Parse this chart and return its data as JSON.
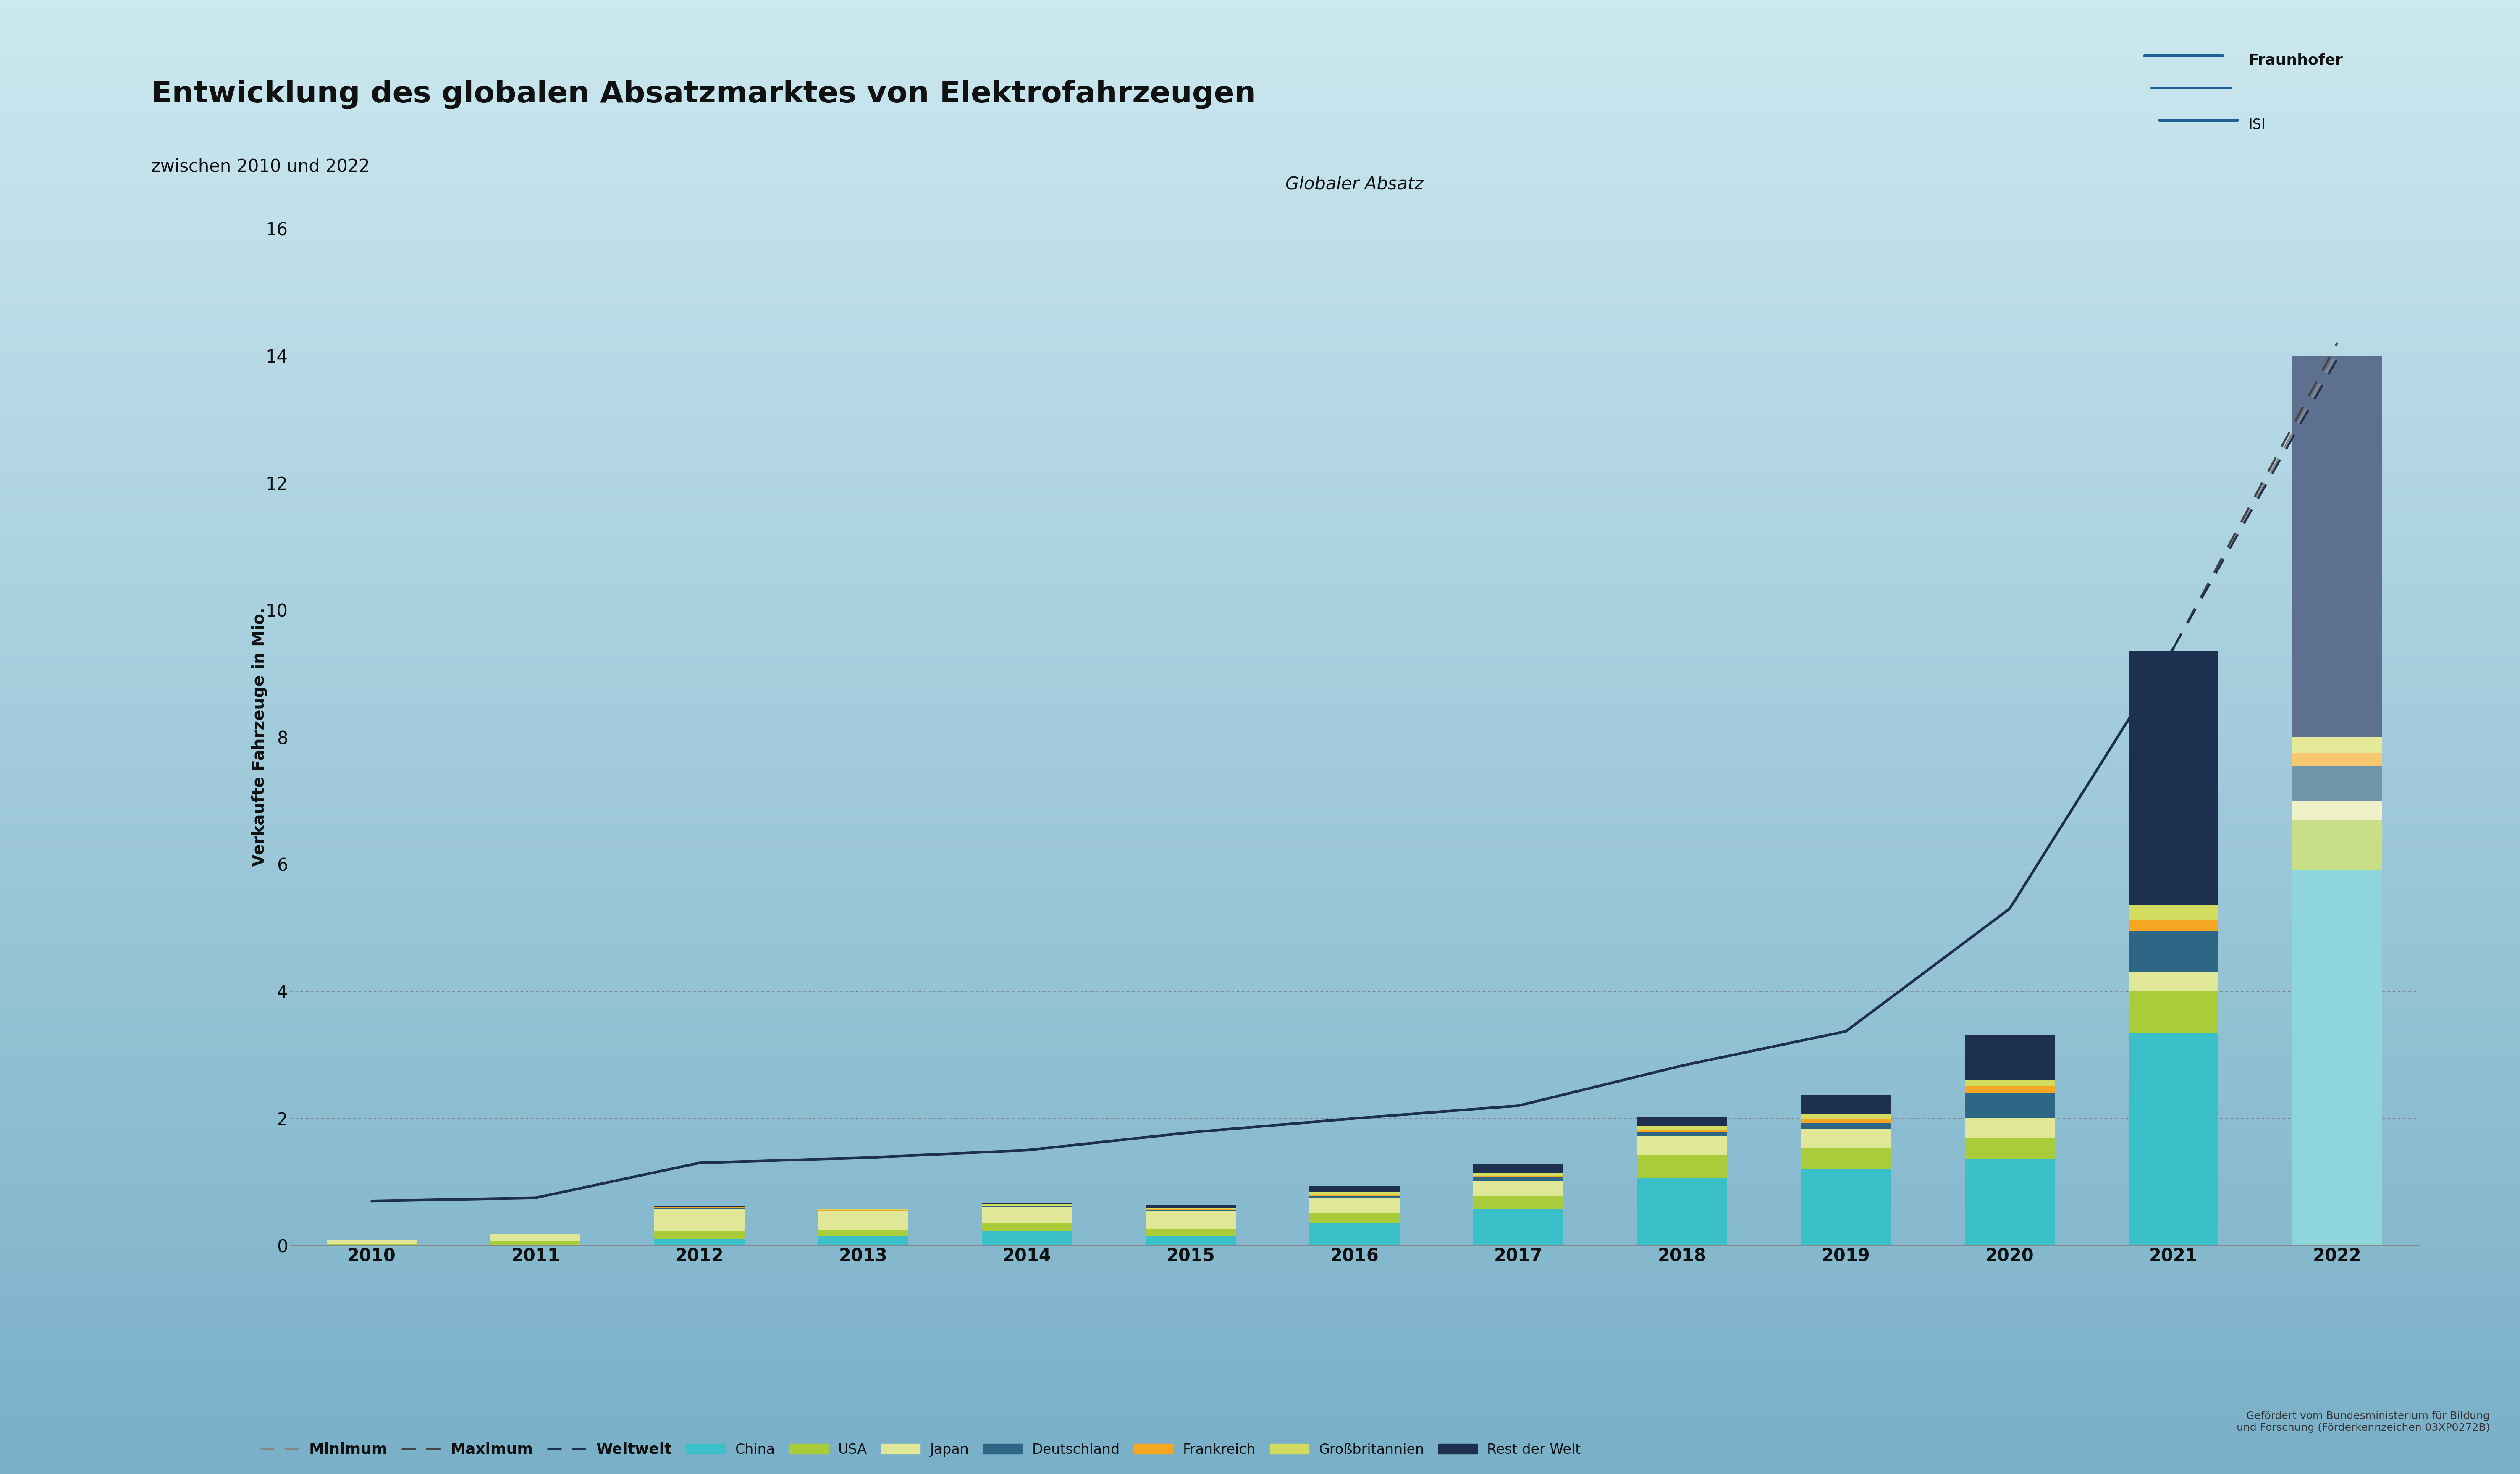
{
  "title": "Entwicklung des globalen Absatzmarktes von Elektrofahrzeugen",
  "subtitle": "zwischen 2010 und 2022",
  "chart_label": "Globaler Absatz",
  "ylabel": "Verkaufte Fahrzeuge in Mio.",
  "years": [
    2010,
    2011,
    2012,
    2013,
    2014,
    2015,
    2016,
    2017,
    2018,
    2019,
    2020,
    2021,
    2022
  ],
  "series_order": [
    "China",
    "USA",
    "Japan",
    "Deutschland",
    "Frankreich",
    "Grossbritannien",
    "RestDerWelt"
  ],
  "series_labels": [
    "China",
    "USA",
    "Japan",
    "Deutschland",
    "Frankreich",
    "Großbritannien",
    "Rest der Welt"
  ],
  "series_colors": [
    "#3bbfc8",
    "#a8cc3a",
    "#e0e898",
    "#2e6685",
    "#f5a623",
    "#d4dc60",
    "#1e3050"
  ],
  "series_colors_forecast": [
    "#8fd5dc",
    "#c8df88",
    "#eff2c8",
    "#6e96a8",
    "#f8c870",
    "#e4ea98",
    "#5e7090"
  ],
  "bar_data": {
    "China": [
      0.01,
      0.01,
      0.1,
      0.15,
      0.23,
      0.15,
      0.35,
      0.58,
      1.06,
      1.2,
      1.37,
      3.35,
      5.9
    ],
    "USA": [
      0.02,
      0.06,
      0.13,
      0.1,
      0.12,
      0.11,
      0.16,
      0.2,
      0.36,
      0.33,
      0.33,
      0.65,
      0.8
    ],
    "Japan": [
      0.06,
      0.11,
      0.35,
      0.29,
      0.26,
      0.28,
      0.24,
      0.24,
      0.3,
      0.3,
      0.3,
      0.3,
      0.3
    ],
    "Deutschland": [
      0.0,
      0.0,
      0.01,
      0.01,
      0.01,
      0.02,
      0.03,
      0.05,
      0.07,
      0.1,
      0.4,
      0.65,
      0.55
    ],
    "Frankreich": [
      0.0,
      0.0,
      0.01,
      0.01,
      0.01,
      0.01,
      0.02,
      0.02,
      0.03,
      0.06,
      0.11,
      0.17,
      0.2
    ],
    "Grossbritannien": [
      0.0,
      0.0,
      0.01,
      0.01,
      0.02,
      0.02,
      0.04,
      0.05,
      0.06,
      0.08,
      0.1,
      0.24,
      0.25
    ],
    "RestDerWelt": [
      0.0,
      0.0,
      0.01,
      0.01,
      0.01,
      0.05,
      0.1,
      0.15,
      0.15,
      0.3,
      0.7,
      4.0,
      6.0
    ]
  },
  "weltweit": [
    0.7,
    0.75,
    1.3,
    1.38,
    1.5,
    1.78,
    2.0,
    2.2,
    2.83,
    3.37,
    5.3,
    9.4,
    13.95
  ],
  "min_2022": 14.05,
  "max_2022": 14.2,
  "weltweit_2022": 13.95,
  "ylim": [
    0,
    16
  ],
  "yticks": [
    0,
    2,
    4,
    6,
    8,
    10,
    12,
    14,
    16
  ],
  "bg_top": "#cce8f0",
  "bg_bottom": "#7ab0c8",
  "line_color": "#1e3050",
  "footnote": "Gefördert vom Bundesministerium für Bildung\nund Forschung (Förderkennzeichen 03XP0272B)"
}
